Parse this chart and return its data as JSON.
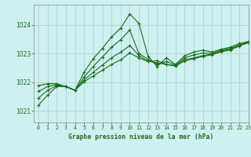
{
  "title": "Graphe pression niveau de la mer (hPa)",
  "bg_color": "#cff0f0",
  "grid_color": "#b0d8d8",
  "line_color": "#1a6b1a",
  "xlim": [
    -0.5,
    23
  ],
  "ylim": [
    1020.6,
    1024.7
  ],
  "yticks": [
    1021,
    1022,
    1023,
    1024
  ],
  "xticks": [
    0,
    1,
    2,
    3,
    4,
    5,
    6,
    7,
    8,
    9,
    10,
    11,
    12,
    13,
    14,
    15,
    16,
    17,
    18,
    19,
    20,
    21,
    22,
    23
  ],
  "series1_x": [
    0,
    1,
    2,
    3,
    4,
    5,
    6,
    7,
    8,
    9,
    10,
    11,
    12,
    13,
    14,
    15,
    16,
    17,
    18,
    19,
    20,
    21,
    22,
    23
  ],
  "series1_y": [
    1021.2,
    1021.55,
    1021.85,
    1021.85,
    1021.72,
    1022.35,
    1022.82,
    1023.18,
    1023.58,
    1023.88,
    1024.38,
    1024.05,
    1022.9,
    1022.55,
    1022.85,
    1022.62,
    1022.92,
    1023.05,
    1023.12,
    1023.05,
    1023.15,
    1023.22,
    1023.35,
    1023.42
  ],
  "series2_x": [
    0,
    1,
    2,
    3,
    4,
    5,
    6,
    7,
    8,
    9,
    10,
    11,
    12,
    13,
    14,
    15,
    16,
    17,
    18,
    19,
    20,
    21,
    22,
    23
  ],
  "series2_y": [
    1021.68,
    1021.85,
    1021.92,
    1021.85,
    1021.72,
    1022.08,
    1022.35,
    1022.6,
    1022.85,
    1023.05,
    1023.28,
    1022.93,
    1022.73,
    1022.68,
    1022.62,
    1022.58,
    1022.78,
    1022.85,
    1022.93,
    1022.98,
    1023.08,
    1023.15,
    1023.28,
    1023.38
  ],
  "series3_x": [
    0,
    1,
    2,
    3,
    4,
    5,
    6,
    7,
    8,
    9,
    10,
    11,
    12,
    13,
    14,
    15,
    16,
    17,
    18,
    19,
    20,
    21,
    22,
    23
  ],
  "series3_y": [
    1021.45,
    1021.72,
    1021.88,
    1021.85,
    1021.72,
    1022.18,
    1022.55,
    1022.88,
    1023.22,
    1023.48,
    1023.82,
    1023.0,
    1022.8,
    1022.62,
    1022.72,
    1022.6,
    1022.85,
    1022.95,
    1023.02,
    1023.0,
    1023.12,
    1023.18,
    1023.3,
    1023.4
  ],
  "series4_x": [
    0,
    1,
    2,
    3,
    4,
    5,
    6,
    7,
    8,
    9,
    10,
    11,
    12,
    13,
    14,
    15,
    16,
    17,
    18,
    19,
    20,
    21,
    22,
    23
  ],
  "series4_y": [
    1021.88,
    1021.95,
    1021.95,
    1021.85,
    1021.72,
    1022.02,
    1022.22,
    1022.42,
    1022.62,
    1022.78,
    1023.02,
    1022.85,
    1022.72,
    1022.75,
    1022.62,
    1022.56,
    1022.74,
    1022.82,
    1022.9,
    1022.96,
    1023.06,
    1023.12,
    1023.26,
    1023.38
  ]
}
